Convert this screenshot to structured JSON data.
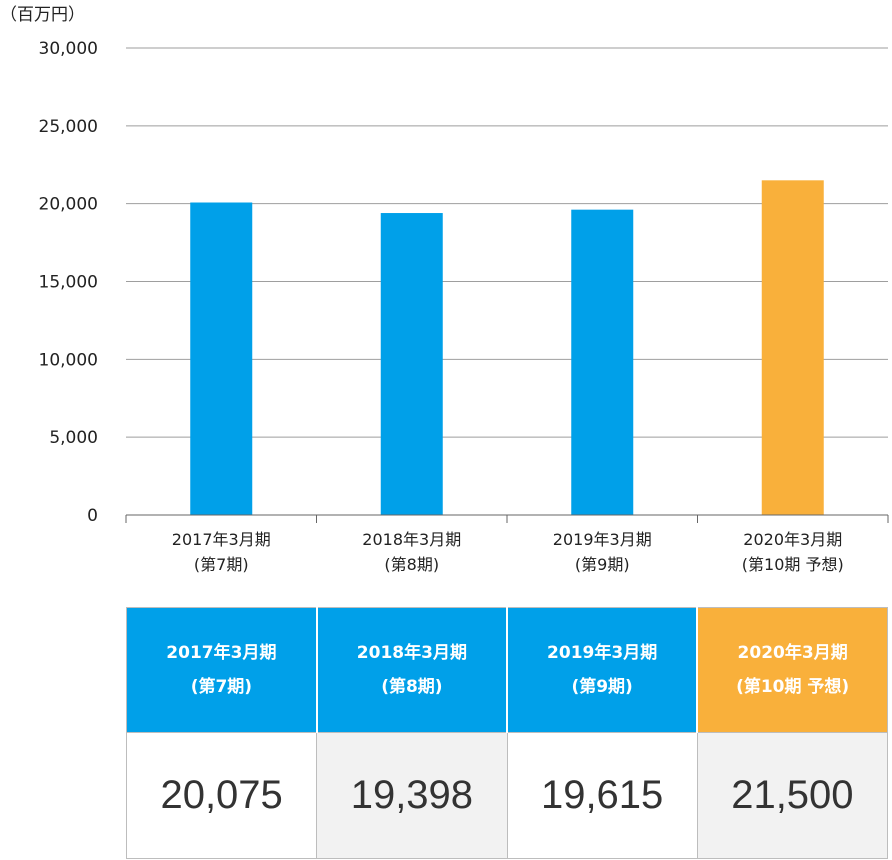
{
  "chart_data": {
    "type": "bar",
    "unit_label": "（百万円）",
    "categories": [
      {
        "line1": "2017年3月期",
        "line2": "(第7期)"
      },
      {
        "line1": "2018年3月期",
        "line2": "(第8期)"
      },
      {
        "line1": "2019年3月期",
        "line2": "(第9期)"
      },
      {
        "line1": "2020年3月期",
        "line2": "(第10期 予想)"
      }
    ],
    "values": [
      20075,
      19398,
      19615,
      21500
    ],
    "value_labels": [
      "20,075",
      "19,398",
      "19,615",
      "21,500"
    ],
    "bar_colors": [
      "#00a0e9",
      "#00a0e9",
      "#00a0e9",
      "#f9b03b"
    ],
    "ylim": [
      0,
      30000
    ],
    "yticks": [
      0,
      5000,
      10000,
      15000,
      20000,
      25000,
      30000
    ],
    "ytick_labels": [
      "0",
      "5,000",
      "10,000",
      "15,000",
      "20,000",
      "25,000",
      "30,000"
    ],
    "grid": true,
    "legend": "none"
  },
  "colors": {
    "actual": "#00a0e9",
    "forecast": "#f9b03b",
    "grid": "#9e9e9e"
  }
}
